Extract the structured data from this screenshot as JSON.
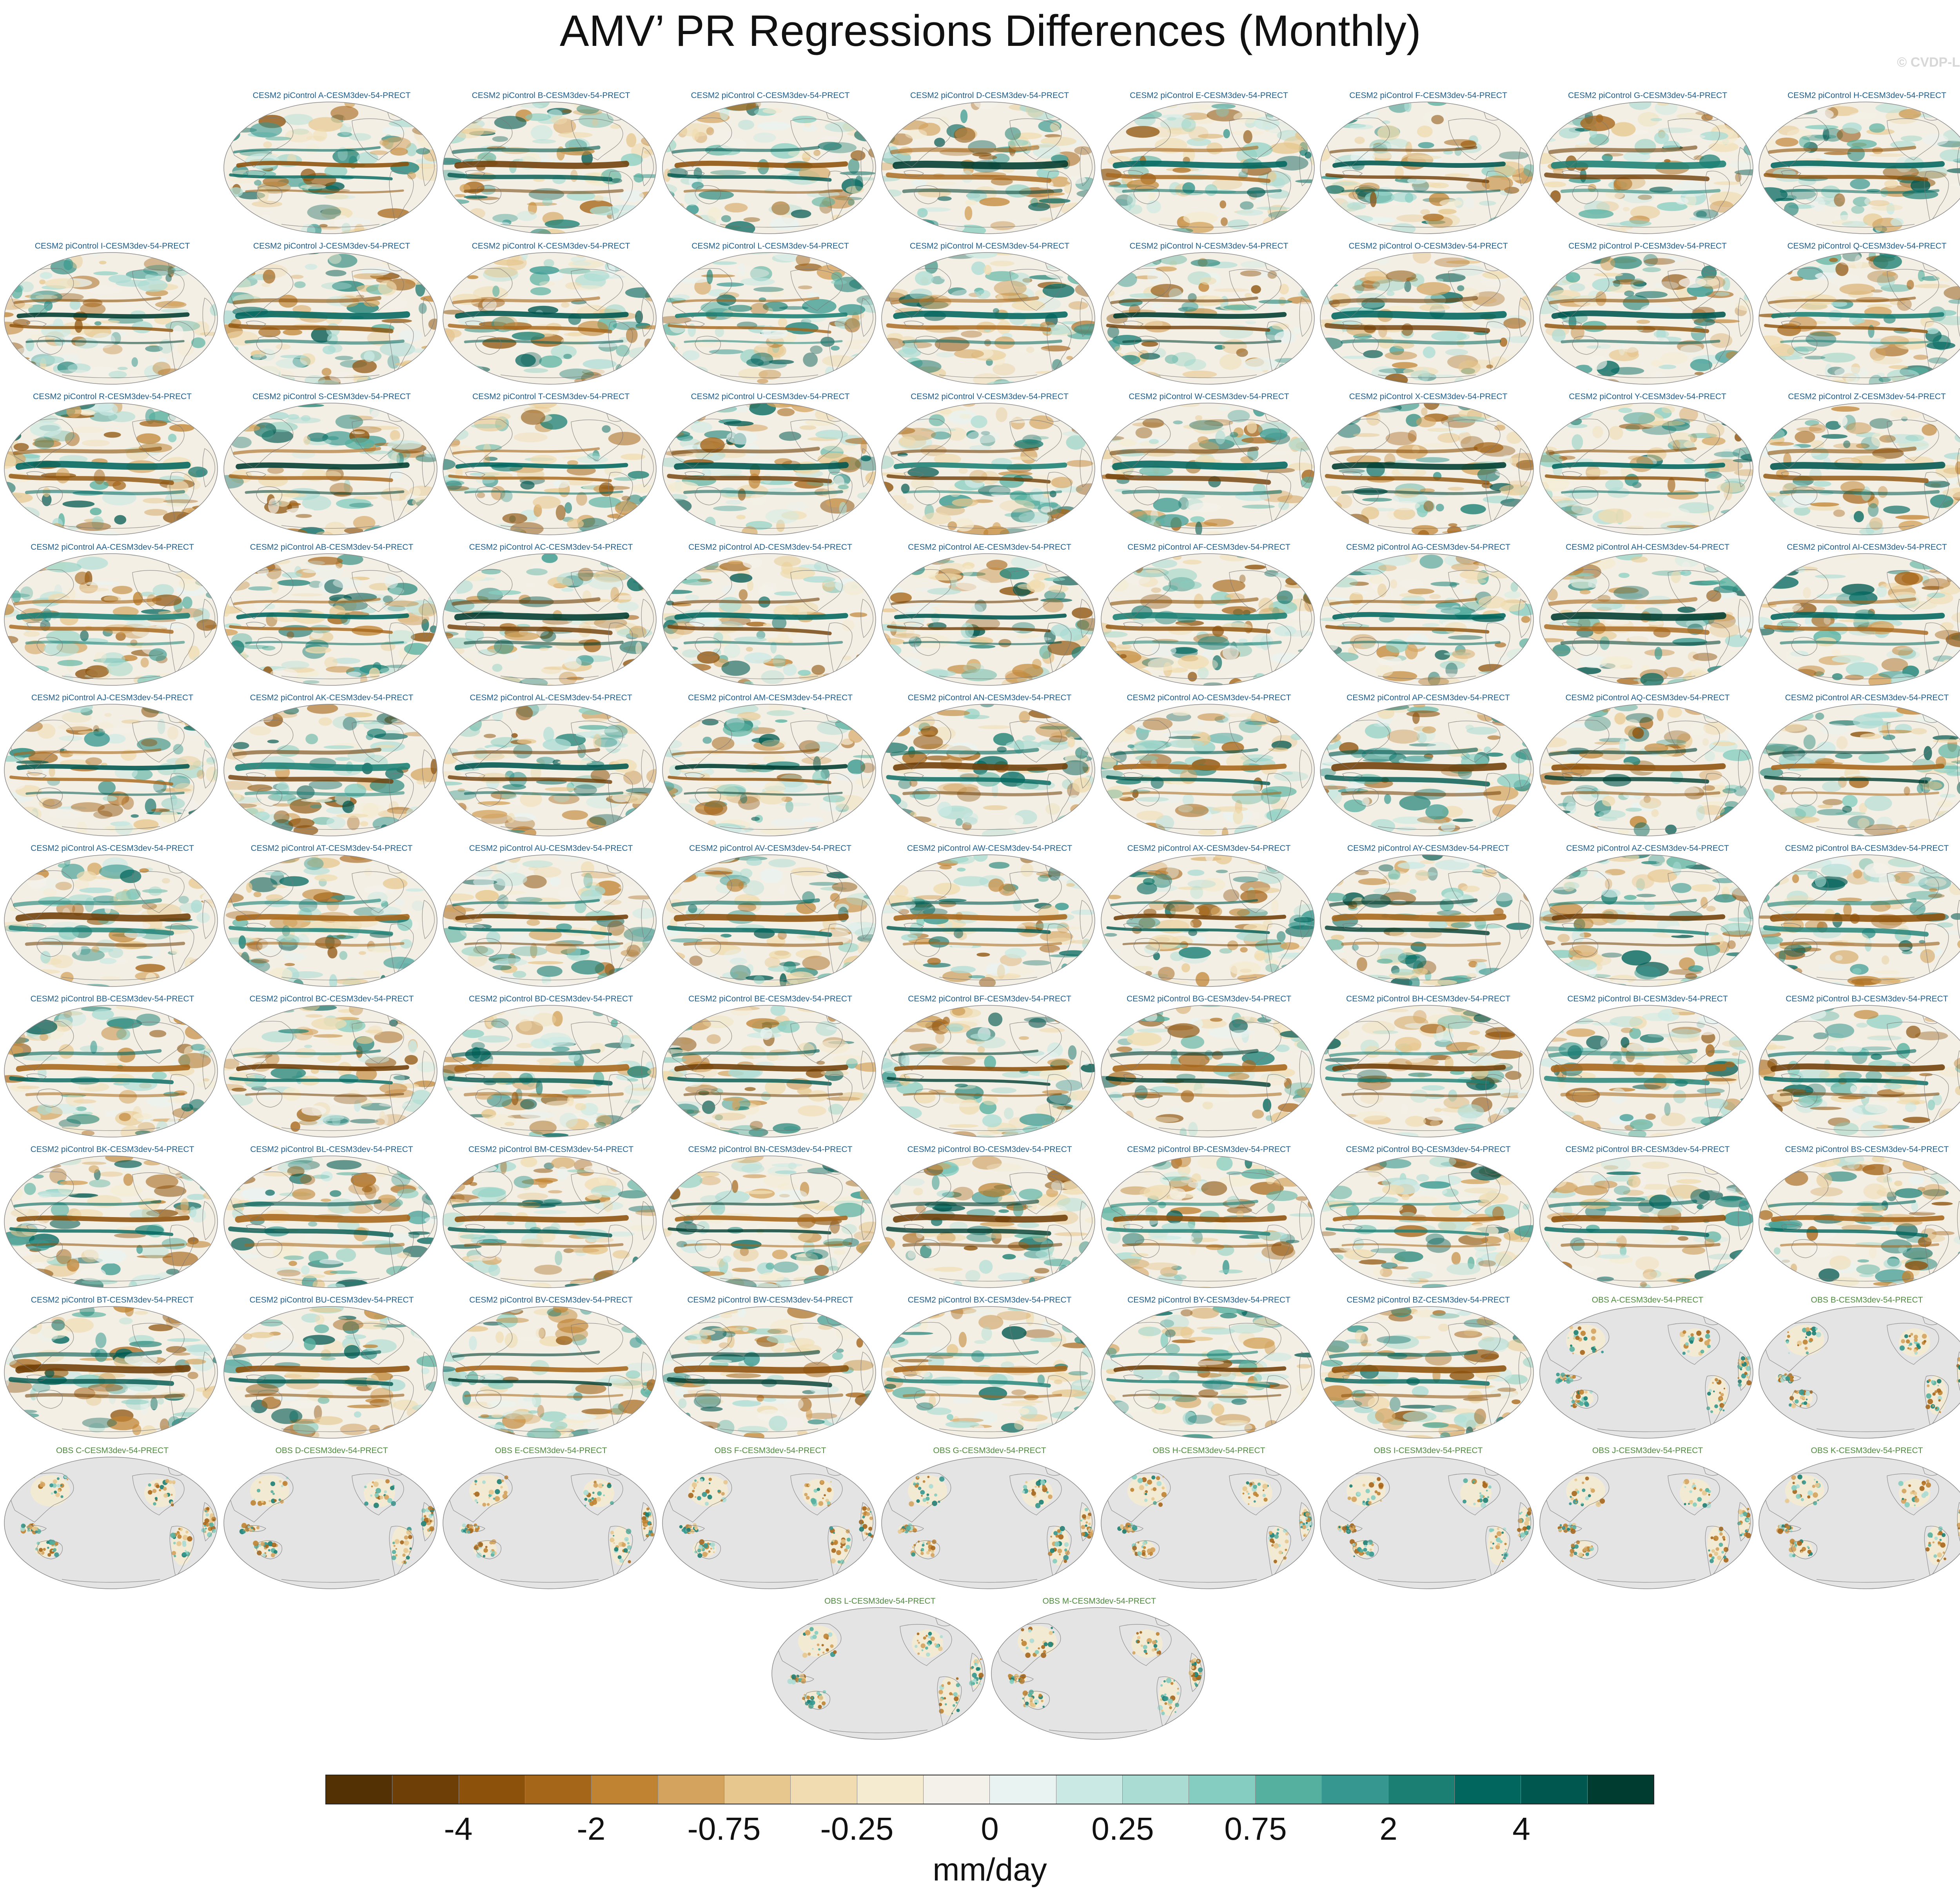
{
  "figure": {
    "title": "AMV’ PR Regressions Differences (Monthly)",
    "watermark": "© CVDP-LE"
  },
  "panels": [
    {
      "row": 0,
      "col": 1,
      "label": "CESM2 piControl A-CESM3dev-54-PRECT",
      "kind": "model"
    },
    {
      "row": 0,
      "col": 2,
      "label": "CESM2 piControl B-CESM3dev-54-PRECT",
      "kind": "model"
    },
    {
      "row": 0,
      "col": 3,
      "label": "CESM2 piControl C-CESM3dev-54-PRECT",
      "kind": "model"
    },
    {
      "row": 0,
      "col": 4,
      "label": "CESM2 piControl D-CESM3dev-54-PRECT",
      "kind": "model"
    },
    {
      "row": 0,
      "col": 5,
      "label": "CESM2 piControl E-CESM3dev-54-PRECT",
      "kind": "model"
    },
    {
      "row": 0,
      "col": 6,
      "label": "CESM2 piControl F-CESM3dev-54-PRECT",
      "kind": "model"
    },
    {
      "row": 0,
      "col": 7,
      "label": "CESM2 piControl G-CESM3dev-54-PRECT",
      "kind": "model"
    },
    {
      "row": 0,
      "col": 8,
      "label": "CESM2 piControl H-CESM3dev-54-PRECT",
      "kind": "model"
    },
    {
      "row": 1,
      "col": 0,
      "label": "CESM2 piControl I-CESM3dev-54-PRECT",
      "kind": "model"
    },
    {
      "row": 1,
      "col": 1,
      "label": "CESM2 piControl J-CESM3dev-54-PRECT",
      "kind": "model"
    },
    {
      "row": 1,
      "col": 2,
      "label": "CESM2 piControl K-CESM3dev-54-PRECT",
      "kind": "model"
    },
    {
      "row": 1,
      "col": 3,
      "label": "CESM2 piControl L-CESM3dev-54-PRECT",
      "kind": "model"
    },
    {
      "row": 1,
      "col": 4,
      "label": "CESM2 piControl M-CESM3dev-54-PRECT",
      "kind": "model"
    },
    {
      "row": 1,
      "col": 5,
      "label": "CESM2 piControl N-CESM3dev-54-PRECT",
      "kind": "model"
    },
    {
      "row": 1,
      "col": 6,
      "label": "CESM2 piControl O-CESM3dev-54-PRECT",
      "kind": "model"
    },
    {
      "row": 1,
      "col": 7,
      "label": "CESM2 piControl P-CESM3dev-54-PRECT",
      "kind": "model"
    },
    {
      "row": 1,
      "col": 8,
      "label": "CESM2 piControl Q-CESM3dev-54-PRECT",
      "kind": "model"
    },
    {
      "row": 2,
      "col": 0,
      "label": "CESM2 piControl R-CESM3dev-54-PRECT",
      "kind": "model"
    },
    {
      "row": 2,
      "col": 1,
      "label": "CESM2 piControl S-CESM3dev-54-PRECT",
      "kind": "model"
    },
    {
      "row": 2,
      "col": 2,
      "label": "CESM2 piControl T-CESM3dev-54-PRECT",
      "kind": "model"
    },
    {
      "row": 2,
      "col": 3,
      "label": "CESM2 piControl U-CESM3dev-54-PRECT",
      "kind": "model"
    },
    {
      "row": 2,
      "col": 4,
      "label": "CESM2 piControl V-CESM3dev-54-PRECT",
      "kind": "model"
    },
    {
      "row": 2,
      "col": 5,
      "label": "CESM2 piControl W-CESM3dev-54-PRECT",
      "kind": "model"
    },
    {
      "row": 2,
      "col": 6,
      "label": "CESM2 piControl X-CESM3dev-54-PRECT",
      "kind": "model"
    },
    {
      "row": 2,
      "col": 7,
      "label": "CESM2 piControl Y-CESM3dev-54-PRECT",
      "kind": "model"
    },
    {
      "row": 2,
      "col": 8,
      "label": "CESM2 piControl Z-CESM3dev-54-PRECT",
      "kind": "model"
    },
    {
      "row": 3,
      "col": 0,
      "label": "CESM2 piControl AA-CESM3dev-54-PRECT",
      "kind": "model"
    },
    {
      "row": 3,
      "col": 1,
      "label": "CESM2 piControl AB-CESM3dev-54-PRECT",
      "kind": "model"
    },
    {
      "row": 3,
      "col": 2,
      "label": "CESM2 piControl AC-CESM3dev-54-PRECT",
      "kind": "model"
    },
    {
      "row": 3,
      "col": 3,
      "label": "CESM2 piControl AD-CESM3dev-54-PRECT",
      "kind": "model"
    },
    {
      "row": 3,
      "col": 4,
      "label": "CESM2 piControl AE-CESM3dev-54-PRECT",
      "kind": "model"
    },
    {
      "row": 3,
      "col": 5,
      "label": "CESM2 piControl AF-CESM3dev-54-PRECT",
      "kind": "model"
    },
    {
      "row": 3,
      "col": 6,
      "label": "CESM2 piControl AG-CESM3dev-54-PRECT",
      "kind": "model"
    },
    {
      "row": 3,
      "col": 7,
      "label": "CESM2 piControl AH-CESM3dev-54-PRECT",
      "kind": "model"
    },
    {
      "row": 3,
      "col": 8,
      "label": "CESM2 piControl AI-CESM3dev-54-PRECT",
      "kind": "model"
    },
    {
      "row": 4,
      "col": 0,
      "label": "CESM2 piControl AJ-CESM3dev-54-PRECT",
      "kind": "model"
    },
    {
      "row": 4,
      "col": 1,
      "label": "CESM2 piControl AK-CESM3dev-54-PRECT",
      "kind": "model"
    },
    {
      "row": 4,
      "col": 2,
      "label": "CESM2 piControl AL-CESM3dev-54-PRECT",
      "kind": "model"
    },
    {
      "row": 4,
      "col": 3,
      "label": "CESM2 piControl AM-CESM3dev-54-PRECT",
      "kind": "model"
    },
    {
      "row": 4,
      "col": 4,
      "label": "CESM2 piControl AN-CESM3dev-54-PRECT",
      "kind": "model"
    },
    {
      "row": 4,
      "col": 5,
      "label": "CESM2 piControl AO-CESM3dev-54-PRECT",
      "kind": "model"
    },
    {
      "row": 4,
      "col": 6,
      "label": "CESM2 piControl AP-CESM3dev-54-PRECT",
      "kind": "model"
    },
    {
      "row": 4,
      "col": 7,
      "label": "CESM2 piControl AQ-CESM3dev-54-PRECT",
      "kind": "model"
    },
    {
      "row": 4,
      "col": 8,
      "label": "CESM2 piControl AR-CESM3dev-54-PRECT",
      "kind": "model"
    },
    {
      "row": 5,
      "col": 0,
      "label": "CESM2 piControl AS-CESM3dev-54-PRECT",
      "kind": "model"
    },
    {
      "row": 5,
      "col": 1,
      "label": "CESM2 piControl AT-CESM3dev-54-PRECT",
      "kind": "model"
    },
    {
      "row": 5,
      "col": 2,
      "label": "CESM2 piControl AU-CESM3dev-54-PRECT",
      "kind": "model"
    },
    {
      "row": 5,
      "col": 3,
      "label": "CESM2 piControl AV-CESM3dev-54-PRECT",
      "kind": "model"
    },
    {
      "row": 5,
      "col": 4,
      "label": "CESM2 piControl AW-CESM3dev-54-PRECT",
      "kind": "model"
    },
    {
      "row": 5,
      "col": 5,
      "label": "CESM2 piControl AX-CESM3dev-54-PRECT",
      "kind": "model"
    },
    {
      "row": 5,
      "col": 6,
      "label": "CESM2 piControl AY-CESM3dev-54-PRECT",
      "kind": "model"
    },
    {
      "row": 5,
      "col": 7,
      "label": "CESM2 piControl AZ-CESM3dev-54-PRECT",
      "kind": "model"
    },
    {
      "row": 5,
      "col": 8,
      "label": "CESM2 piControl BA-CESM3dev-54-PRECT",
      "kind": "model"
    },
    {
      "row": 6,
      "col": 0,
      "label": "CESM2 piControl BB-CESM3dev-54-PRECT",
      "kind": "model"
    },
    {
      "row": 6,
      "col": 1,
      "label": "CESM2 piControl BC-CESM3dev-54-PRECT",
      "kind": "model"
    },
    {
      "row": 6,
      "col": 2,
      "label": "CESM2 piControl BD-CESM3dev-54-PRECT",
      "kind": "model"
    },
    {
      "row": 6,
      "col": 3,
      "label": "CESM2 piControl BE-CESM3dev-54-PRECT",
      "kind": "model"
    },
    {
      "row": 6,
      "col": 4,
      "label": "CESM2 piControl BF-CESM3dev-54-PRECT",
      "kind": "model"
    },
    {
      "row": 6,
      "col": 5,
      "label": "CESM2 piControl BG-CESM3dev-54-PRECT",
      "kind": "model"
    },
    {
      "row": 6,
      "col": 6,
      "label": "CESM2 piControl BH-CESM3dev-54-PRECT",
      "kind": "model"
    },
    {
      "row": 6,
      "col": 7,
      "label": "CESM2 piControl BI-CESM3dev-54-PRECT",
      "kind": "model"
    },
    {
      "row": 6,
      "col": 8,
      "label": "CESM2 piControl BJ-CESM3dev-54-PRECT",
      "kind": "model"
    },
    {
      "row": 7,
      "col": 0,
      "label": "CESM2 piControl BK-CESM3dev-54-PRECT",
      "kind": "model"
    },
    {
      "row": 7,
      "col": 1,
      "label": "CESM2 piControl BL-CESM3dev-54-PRECT",
      "kind": "model"
    },
    {
      "row": 7,
      "col": 2,
      "label": "CESM2 piControl BM-CESM3dev-54-PRECT",
      "kind": "model"
    },
    {
      "row": 7,
      "col": 3,
      "label": "CESM2 piControl BN-CESM3dev-54-PRECT",
      "kind": "model"
    },
    {
      "row": 7,
      "col": 4,
      "label": "CESM2 piControl BO-CESM3dev-54-PRECT",
      "kind": "model"
    },
    {
      "row": 7,
      "col": 5,
      "label": "CESM2 piControl BP-CESM3dev-54-PRECT",
      "kind": "model"
    },
    {
      "row": 7,
      "col": 6,
      "label": "CESM2 piControl BQ-CESM3dev-54-PRECT",
      "kind": "model"
    },
    {
      "row": 7,
      "col": 7,
      "label": "CESM2 piControl BR-CESM3dev-54-PRECT",
      "kind": "model"
    },
    {
      "row": 7,
      "col": 8,
      "label": "CESM2 piControl BS-CESM3dev-54-PRECT",
      "kind": "model"
    },
    {
      "row": 8,
      "col": 0,
      "label": "CESM2 piControl BT-CESM3dev-54-PRECT",
      "kind": "model"
    },
    {
      "row": 8,
      "col": 1,
      "label": "CESM2 piControl BU-CESM3dev-54-PRECT",
      "kind": "model"
    },
    {
      "row": 8,
      "col": 2,
      "label": "CESM2 piControl BV-CESM3dev-54-PRECT",
      "kind": "model"
    },
    {
      "row": 8,
      "col": 3,
      "label": "CESM2 piControl BW-CESM3dev-54-PRECT",
      "kind": "model"
    },
    {
      "row": 8,
      "col": 4,
      "label": "CESM2 piControl BX-CESM3dev-54-PRECT",
      "kind": "model"
    },
    {
      "row": 8,
      "col": 5,
      "label": "CESM2 piControl BY-CESM3dev-54-PRECT",
      "kind": "model"
    },
    {
      "row": 8,
      "col": 6,
      "label": "CESM2 piControl BZ-CESM3dev-54-PRECT",
      "kind": "model"
    },
    {
      "row": 8,
      "col": 7,
      "label": "OBS A-CESM3dev-54-PRECT",
      "kind": "obs"
    },
    {
      "row": 8,
      "col": 8,
      "label": "OBS B-CESM3dev-54-PRECT",
      "kind": "obs"
    },
    {
      "row": 9,
      "col": 0,
      "label": "OBS C-CESM3dev-54-PRECT",
      "kind": "obs"
    },
    {
      "row": 9,
      "col": 1,
      "label": "OBS D-CESM3dev-54-PRECT",
      "kind": "obs"
    },
    {
      "row": 9,
      "col": 2,
      "label": "OBS E-CESM3dev-54-PRECT",
      "kind": "obs"
    },
    {
      "row": 9,
      "col": 3,
      "label": "OBS F-CESM3dev-54-PRECT",
      "kind": "obs"
    },
    {
      "row": 9,
      "col": 4,
      "label": "OBS G-CESM3dev-54-PRECT",
      "kind": "obs"
    },
    {
      "row": 9,
      "col": 5,
      "label": "OBS H-CESM3dev-54-PRECT",
      "kind": "obs"
    },
    {
      "row": 9,
      "col": 6,
      "label": "OBS I-CESM3dev-54-PRECT",
      "kind": "obs"
    },
    {
      "row": 9,
      "col": 7,
      "label": "OBS J-CESM3dev-54-PRECT",
      "kind": "obs"
    },
    {
      "row": 9,
      "col": 8,
      "label": "OBS K-CESM3dev-54-PRECT",
      "kind": "obs"
    },
    {
      "row": 10,
      "col": 3.5,
      "label": "OBS L-CESM3dev-54-PRECT",
      "kind": "obs"
    },
    {
      "row": 10,
      "col": 4.5,
      "label": "OBS M-CESM3dev-54-PRECT",
      "kind": "obs"
    }
  ],
  "colorbar": {
    "colors": [
      "#543005",
      "#6f3f08",
      "#8c510a",
      "#a6661a",
      "#c08332",
      "#d4a35d",
      "#e7c78d",
      "#f0dcb0",
      "#f5ebd0",
      "#f4f1ea",
      "#e9f3f1",
      "#cbe9e4",
      "#abdcd4",
      "#85cdc0",
      "#56b0a0",
      "#35978f",
      "#1b7f74",
      "#01665e",
      "#00574f",
      "#003c30"
    ],
    "ticks": [
      {
        "label": "-4",
        "boundary": 2
      },
      {
        "label": "-2",
        "boundary": 4
      },
      {
        "label": "-0.75",
        "boundary": 6
      },
      {
        "label": "-0.25",
        "boundary": 8
      },
      {
        "label": "0",
        "boundary": 10
      },
      {
        "label": "0.25",
        "boundary": 12
      },
      {
        "label": "0.75",
        "boundary": 14
      },
      {
        "label": "2",
        "boundary": 16
      },
      {
        "label": "4",
        "boundary": 18
      }
    ],
    "units": "mm/day"
  }
}
